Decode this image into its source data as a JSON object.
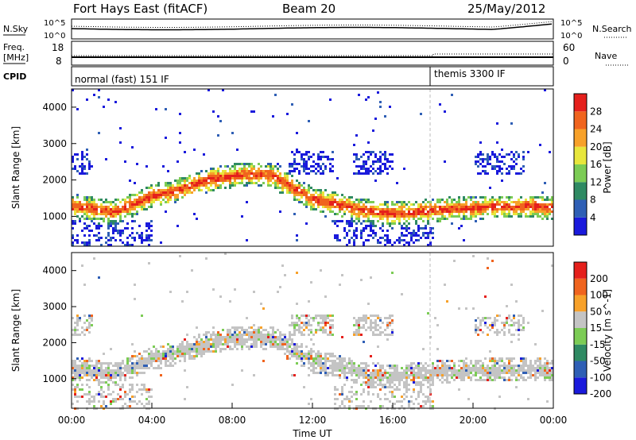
{
  "header": {
    "site": "Fort Hays East (fitACF)",
    "beam": "Beam 20",
    "date": "25/May/2012"
  },
  "top_strip": {
    "left_label": "N.Sky",
    "right_label": "N.Search",
    "left_ticks": [
      "10^5",
      "10^0"
    ],
    "right_ticks": [
      "10^5",
      "10^0"
    ]
  },
  "freq_strip": {
    "left_label_1": "Freq.",
    "left_label_2": "[MHz]",
    "right_label": "Nave",
    "left_ticks": [
      "18",
      "8"
    ],
    "right_ticks": [
      "60",
      "0"
    ]
  },
  "cpid": {
    "label": "CPID",
    "segments": [
      {
        "start": "00:00",
        "end": "18:05",
        "text": "normal (fast) 151 IF"
      },
      {
        "start": "18:05",
        "end": "24:00",
        "text": "themis 3300 IF"
      }
    ]
  },
  "x_axis": {
    "label": "Time UT",
    "ticks": [
      "00:00",
      "04:00",
      "08:00",
      "12:00",
      "16:00",
      "20:00",
      "00:00"
    ]
  },
  "power_panel": {
    "ylabel": "Slant Range [km]",
    "yticks": [
      "1000",
      "2000",
      "3000",
      "4000"
    ],
    "colorbar_label": "Power [dB]",
    "colorbar_ticks": [
      "4",
      "8",
      "12",
      "16",
      "20",
      "24",
      "28"
    ],
    "colors": [
      "#1a1adc",
      "#2f5fb5",
      "#2f8a63",
      "#7ccc55",
      "#e8e63c",
      "#f7a12a",
      "#f0641e",
      "#e5201c"
    ]
  },
  "velocity_panel": {
    "ylabel": "Slant Range [km]",
    "yticks": [
      "1000",
      "2000",
      "3000",
      "4000"
    ],
    "colorbar_label": "Velocity [m s^-1]",
    "colorbar_ticks": [
      "200",
      "100",
      "50",
      "15",
      "-15",
      "-50",
      "-100",
      "-200"
    ],
    "colors": [
      "#1a1adc",
      "#2f5fb5",
      "#2f8a63",
      "#7ccc55",
      "#c4c4c4",
      "#f7a12a",
      "#f0641e",
      "#e5201c"
    ]
  },
  "chart_data": {
    "type": "heatmap",
    "x_range_hours": [
      0,
      24
    ],
    "y_range_km": [
      180,
      4500
    ],
    "power_db_range": [
      0,
      30
    ],
    "velocity_range": [
      -200,
      200
    ],
    "main_echo_band": {
      "description_time_h": [
        0,
        1,
        2,
        3,
        4,
        5,
        6,
        7,
        8,
        9,
        10,
        11,
        12,
        13,
        14,
        15,
        16,
        17,
        18,
        19,
        20,
        21,
        22,
        23,
        24
      ],
      "range_km": [
        1300,
        1250,
        1150,
        1350,
        1600,
        1700,
        1900,
        2050,
        2150,
        2200,
        2150,
        1800,
        1500,
        1400,
        1250,
        1150,
        1100,
        1150,
        1200,
        1250,
        1250,
        1300,
        1300,
        1300,
        1250
      ]
    }
  }
}
